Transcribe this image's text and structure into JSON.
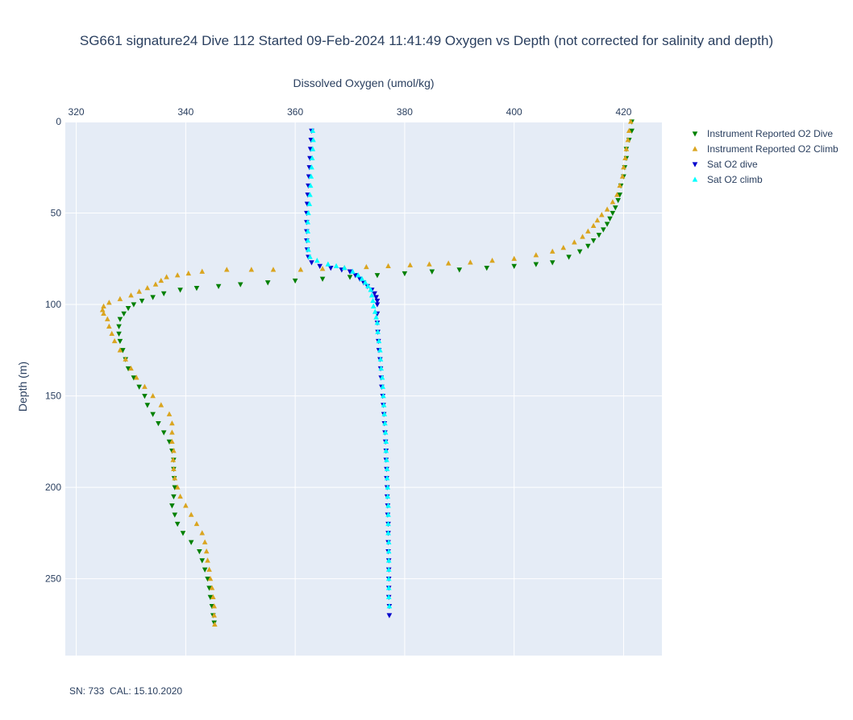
{
  "chart_data": {
    "type": "scatter",
    "title": "SG661 signature24 Dive 112 Started 09-Feb-2024 11:41:49  Oxygen vs Depth (not corrected for salinity and depth)",
    "xlabel": "Dissolved Oxygen (umol/kg)",
    "ylabel": "Depth (m)",
    "x_axis_position": "top",
    "y_axis_reversed": true,
    "xlim": [
      318,
      427
    ],
    "ylim": [
      0,
      292
    ],
    "x_ticks": [
      "320",
      "340",
      "360",
      "380",
      "400",
      "420"
    ],
    "y_ticks": [
      "0",
      "50",
      "100",
      "150",
      "200",
      "250"
    ],
    "grid": true,
    "legend_position": "top-right",
    "plot_background": "#E5ECF6",
    "series": [
      {
        "name": "Instrument Reported O2 Dive",
        "marker": "triangle-down",
        "color": "#008000",
        "points": [
          [
            421.5,
            0
          ],
          [
            421.5,
            5
          ],
          [
            421,
            10
          ],
          [
            420.5,
            15
          ],
          [
            420.5,
            20
          ],
          [
            420.2,
            25
          ],
          [
            420,
            30
          ],
          [
            419.5,
            35
          ],
          [
            419.3,
            40
          ],
          [
            419,
            43
          ],
          [
            418.5,
            47
          ],
          [
            418,
            50
          ],
          [
            417.5,
            53
          ],
          [
            417,
            56
          ],
          [
            416.3,
            59
          ],
          [
            415.5,
            62
          ],
          [
            414.5,
            65
          ],
          [
            413.5,
            68
          ],
          [
            412,
            71
          ],
          [
            410,
            74
          ],
          [
            407,
            77
          ],
          [
            404,
            78
          ],
          [
            400,
            79
          ],
          [
            395,
            80
          ],
          [
            390,
            81
          ],
          [
            385,
            82
          ],
          [
            380,
            83
          ],
          [
            375,
            84
          ],
          [
            370,
            85
          ],
          [
            365,
            86
          ],
          [
            360,
            87
          ],
          [
            355,
            88
          ],
          [
            350,
            89
          ],
          [
            346,
            90
          ],
          [
            342,
            91
          ],
          [
            339,
            92
          ],
          [
            336,
            94
          ],
          [
            334,
            96
          ],
          [
            332,
            98
          ],
          [
            330.5,
            100
          ],
          [
            329.5,
            102
          ],
          [
            328.7,
            105
          ],
          [
            328,
            108
          ],
          [
            327.8,
            112
          ],
          [
            327.8,
            116
          ],
          [
            328,
            120
          ],
          [
            328.5,
            125
          ],
          [
            329,
            130
          ],
          [
            329.5,
            135
          ],
          [
            330.5,
            140
          ],
          [
            331.5,
            145
          ],
          [
            332.5,
            150
          ],
          [
            333,
            155
          ],
          [
            334,
            160
          ],
          [
            335,
            165
          ],
          [
            336,
            170
          ],
          [
            337,
            175
          ],
          [
            337.5,
            180
          ],
          [
            337.8,
            185
          ],
          [
            337.8,
            190
          ],
          [
            337.9,
            195
          ],
          [
            338,
            200
          ],
          [
            337.8,
            205
          ],
          [
            337.5,
            210
          ],
          [
            338,
            215
          ],
          [
            338.5,
            220
          ],
          [
            339.5,
            225
          ],
          [
            341,
            230
          ],
          [
            342.5,
            235
          ],
          [
            343,
            240
          ],
          [
            343.5,
            245
          ],
          [
            344,
            250
          ],
          [
            344.3,
            255
          ],
          [
            344.5,
            260
          ],
          [
            344.8,
            265
          ],
          [
            345,
            270
          ],
          [
            345.2,
            274
          ]
        ]
      },
      {
        "name": "Instrument Reported O2 Climb",
        "marker": "triangle-up",
        "color": "#DAA520",
        "points": [
          [
            421.3,
            0
          ],
          [
            421,
            5
          ],
          [
            420.8,
            10
          ],
          [
            420.5,
            15
          ],
          [
            420.3,
            20
          ],
          [
            420,
            25
          ],
          [
            419.8,
            30
          ],
          [
            419.3,
            35
          ],
          [
            418.8,
            40
          ],
          [
            418,
            44
          ],
          [
            417,
            48
          ],
          [
            416,
            51
          ],
          [
            415.2,
            54
          ],
          [
            414.5,
            57
          ],
          [
            413.5,
            60
          ],
          [
            412.5,
            63
          ],
          [
            411,
            66
          ],
          [
            409,
            69
          ],
          [
            407,
            71
          ],
          [
            404,
            73
          ],
          [
            400,
            75
          ],
          [
            396,
            76
          ],
          [
            392,
            77
          ],
          [
            388,
            77.5
          ],
          [
            384.5,
            78
          ],
          [
            381,
            78.5
          ],
          [
            377,
            79
          ],
          [
            373,
            79.5
          ],
          [
            369,
            80
          ],
          [
            365,
            80.5
          ],
          [
            361,
            81
          ],
          [
            356,
            81
          ],
          [
            352,
            81
          ],
          [
            347.5,
            81
          ],
          [
            343,
            82
          ],
          [
            340.5,
            83
          ],
          [
            338.5,
            84
          ],
          [
            336.5,
            85
          ],
          [
            335.5,
            87
          ],
          [
            334.5,
            89
          ],
          [
            333,
            91
          ],
          [
            331.5,
            93
          ],
          [
            330,
            95
          ],
          [
            328,
            97
          ],
          [
            326,
            99
          ],
          [
            325,
            101
          ],
          [
            324.8,
            103
          ],
          [
            325,
            105
          ],
          [
            325.7,
            108
          ],
          [
            326,
            112
          ],
          [
            326.5,
            116
          ],
          [
            327,
            120
          ],
          [
            328,
            125
          ],
          [
            329,
            130
          ],
          [
            330,
            135
          ],
          [
            331,
            140
          ],
          [
            332.5,
            145
          ],
          [
            334,
            150
          ],
          [
            335.5,
            155
          ],
          [
            337,
            160
          ],
          [
            337.5,
            165
          ],
          [
            337.5,
            170
          ],
          [
            337.5,
            175
          ],
          [
            337.8,
            180
          ],
          [
            337.7,
            185
          ],
          [
            337.8,
            190
          ],
          [
            338,
            195
          ],
          [
            338.5,
            200
          ],
          [
            339,
            205
          ],
          [
            340,
            210
          ],
          [
            341,
            215
          ],
          [
            342,
            220
          ],
          [
            343,
            225
          ],
          [
            343.5,
            230
          ],
          [
            343.8,
            235
          ],
          [
            344,
            240
          ],
          [
            344.3,
            245
          ],
          [
            344.5,
            250
          ],
          [
            344.8,
            255
          ],
          [
            345,
            260
          ],
          [
            345.2,
            265
          ],
          [
            345.2,
            270
          ],
          [
            345.3,
            275
          ]
        ]
      },
      {
        "name": "Sat O2 dive",
        "marker": "triangle-down",
        "color": "#0000CD",
        "points": [
          [
            363,
            5
          ],
          [
            362.9,
            10
          ],
          [
            362.8,
            15
          ],
          [
            362.7,
            20
          ],
          [
            362.6,
            25
          ],
          [
            362.5,
            30
          ],
          [
            362.4,
            35
          ],
          [
            362.3,
            40
          ],
          [
            362.2,
            45
          ],
          [
            362.1,
            50
          ],
          [
            362.1,
            55
          ],
          [
            362.1,
            60
          ],
          [
            362.1,
            65
          ],
          [
            362.2,
            70
          ],
          [
            362.4,
            74
          ],
          [
            363,
            77
          ],
          [
            364.5,
            79
          ],
          [
            366.5,
            80
          ],
          [
            368.5,
            81
          ],
          [
            370,
            82
          ],
          [
            371,
            84
          ],
          [
            371.8,
            86
          ],
          [
            372.5,
            88
          ],
          [
            373.2,
            90
          ],
          [
            374,
            92
          ],
          [
            374.5,
            94
          ],
          [
            374.8,
            96
          ],
          [
            375,
            98
          ],
          [
            375,
            100
          ],
          [
            375,
            105
          ],
          [
            375,
            110
          ],
          [
            375.1,
            115
          ],
          [
            375.2,
            120
          ],
          [
            375.3,
            125
          ],
          [
            375.5,
            130
          ],
          [
            375.6,
            135
          ],
          [
            375.7,
            140
          ],
          [
            375.8,
            145
          ],
          [
            376,
            150
          ],
          [
            376.1,
            155
          ],
          [
            376.2,
            160
          ],
          [
            376.3,
            165
          ],
          [
            376.4,
            170
          ],
          [
            376.5,
            175
          ],
          [
            376.6,
            180
          ],
          [
            376.6,
            185
          ],
          [
            376.7,
            190
          ],
          [
            376.7,
            195
          ],
          [
            376.8,
            200
          ],
          [
            376.8,
            205
          ],
          [
            376.9,
            210
          ],
          [
            376.9,
            215
          ],
          [
            377,
            220
          ],
          [
            377,
            225
          ],
          [
            377,
            230
          ],
          [
            377,
            235
          ],
          [
            377.1,
            240
          ],
          [
            377.1,
            245
          ],
          [
            377.1,
            250
          ],
          [
            377.1,
            255
          ],
          [
            377.1,
            260
          ],
          [
            377.2,
            265
          ],
          [
            377.2,
            270
          ]
        ]
      },
      {
        "name": "Sat O2 climb",
        "marker": "triangle-up",
        "color": "#00FFFF",
        "points": [
          [
            363.2,
            5
          ],
          [
            363.3,
            10
          ],
          [
            363.2,
            15
          ],
          [
            363.1,
            20
          ],
          [
            363,
            25
          ],
          [
            362.9,
            30
          ],
          [
            362.8,
            35
          ],
          [
            362.7,
            40
          ],
          [
            362.6,
            45
          ],
          [
            362.4,
            50
          ],
          [
            362.3,
            55
          ],
          [
            362.3,
            60
          ],
          [
            362.3,
            65
          ],
          [
            362.4,
            70
          ],
          [
            362.7,
            74
          ],
          [
            364,
            76
          ],
          [
            366,
            78
          ],
          [
            367.5,
            79
          ],
          [
            369,
            80
          ],
          [
            370.5,
            82
          ],
          [
            371.5,
            84
          ],
          [
            372.2,
            86
          ],
          [
            372.8,
            88
          ],
          [
            373.3,
            90
          ],
          [
            373.8,
            92
          ],
          [
            374,
            95
          ],
          [
            374.2,
            98
          ],
          [
            374.3,
            101
          ],
          [
            374.6,
            104
          ],
          [
            374.8,
            107
          ],
          [
            375,
            110
          ],
          [
            375.1,
            115
          ],
          [
            375.3,
            120
          ],
          [
            375.5,
            125
          ],
          [
            375.6,
            130
          ],
          [
            375.7,
            135
          ],
          [
            375.9,
            140
          ],
          [
            376,
            145
          ],
          [
            376.1,
            150
          ],
          [
            376.2,
            155
          ],
          [
            376.3,
            160
          ],
          [
            376.4,
            165
          ],
          [
            376.5,
            170
          ],
          [
            376.6,
            175
          ],
          [
            376.6,
            180
          ],
          [
            376.7,
            185
          ],
          [
            376.8,
            190
          ],
          [
            376.8,
            195
          ],
          [
            376.9,
            200
          ],
          [
            376.9,
            205
          ],
          [
            377,
            210
          ],
          [
            377,
            215
          ],
          [
            377,
            220
          ],
          [
            377,
            225
          ],
          [
            377.1,
            230
          ],
          [
            377.1,
            235
          ],
          [
            377.1,
            240
          ],
          [
            377.1,
            245
          ],
          [
            377.1,
            250
          ],
          [
            377.1,
            255
          ],
          [
            377.1,
            260
          ],
          [
            377.2,
            265
          ]
        ]
      }
    ]
  },
  "footnote": "SN: 733  CAL: 15.10.2020"
}
